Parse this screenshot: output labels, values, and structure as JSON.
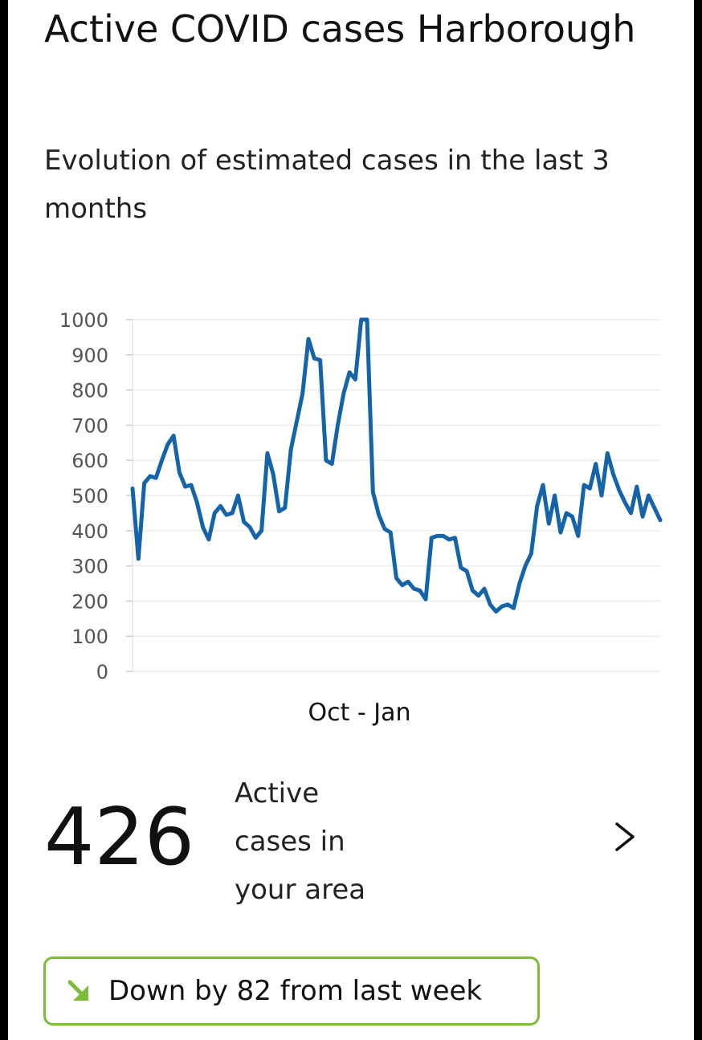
{
  "header": {
    "title": "Active COVID cases Harborough",
    "subtitle": "Evolution of estimated cases in the last 3 months"
  },
  "summary": {
    "value": "426",
    "label": "Active cases in your area",
    "details_icon": "chevron-right-icon"
  },
  "trend": {
    "icon": "arrow-down-right-icon",
    "text": "Down by 82 from last week",
    "color": "#7dbb3b"
  },
  "chart_data": {
    "type": "line",
    "xlabel": "Oct - Jan",
    "ylabel": "",
    "ylim": [
      0,
      1000
    ],
    "yticks": [
      0,
      100,
      200,
      300,
      400,
      500,
      600,
      700,
      800,
      900,
      1000
    ],
    "grid": true,
    "line_color": "#1563a8",
    "series": [
      {
        "values": [
          520,
          320,
          535,
          555,
          550,
          600,
          645,
          670,
          565,
          525,
          530,
          480,
          410,
          375,
          450,
          470,
          445,
          450,
          500,
          425,
          410,
          380,
          400,
          620,
          560,
          455,
          465,
          630,
          710,
          790,
          945,
          890,
          885,
          600,
          590,
          700,
          790,
          850,
          830,
          1000,
          1000,
          510,
          445,
          405,
          395,
          265,
          245,
          255,
          235,
          230,
          205,
          380,
          385,
          385,
          375,
          380,
          295,
          285,
          230,
          215,
          235,
          190,
          170,
          185,
          190,
          180,
          250,
          300,
          335,
          470,
          530,
          420,
          500,
          395,
          450,
          440,
          385,
          530,
          520,
          590,
          500,
          620,
          560,
          515,
          480,
          450,
          525,
          440,
          500,
          465,
          430
        ]
      }
    ]
  }
}
